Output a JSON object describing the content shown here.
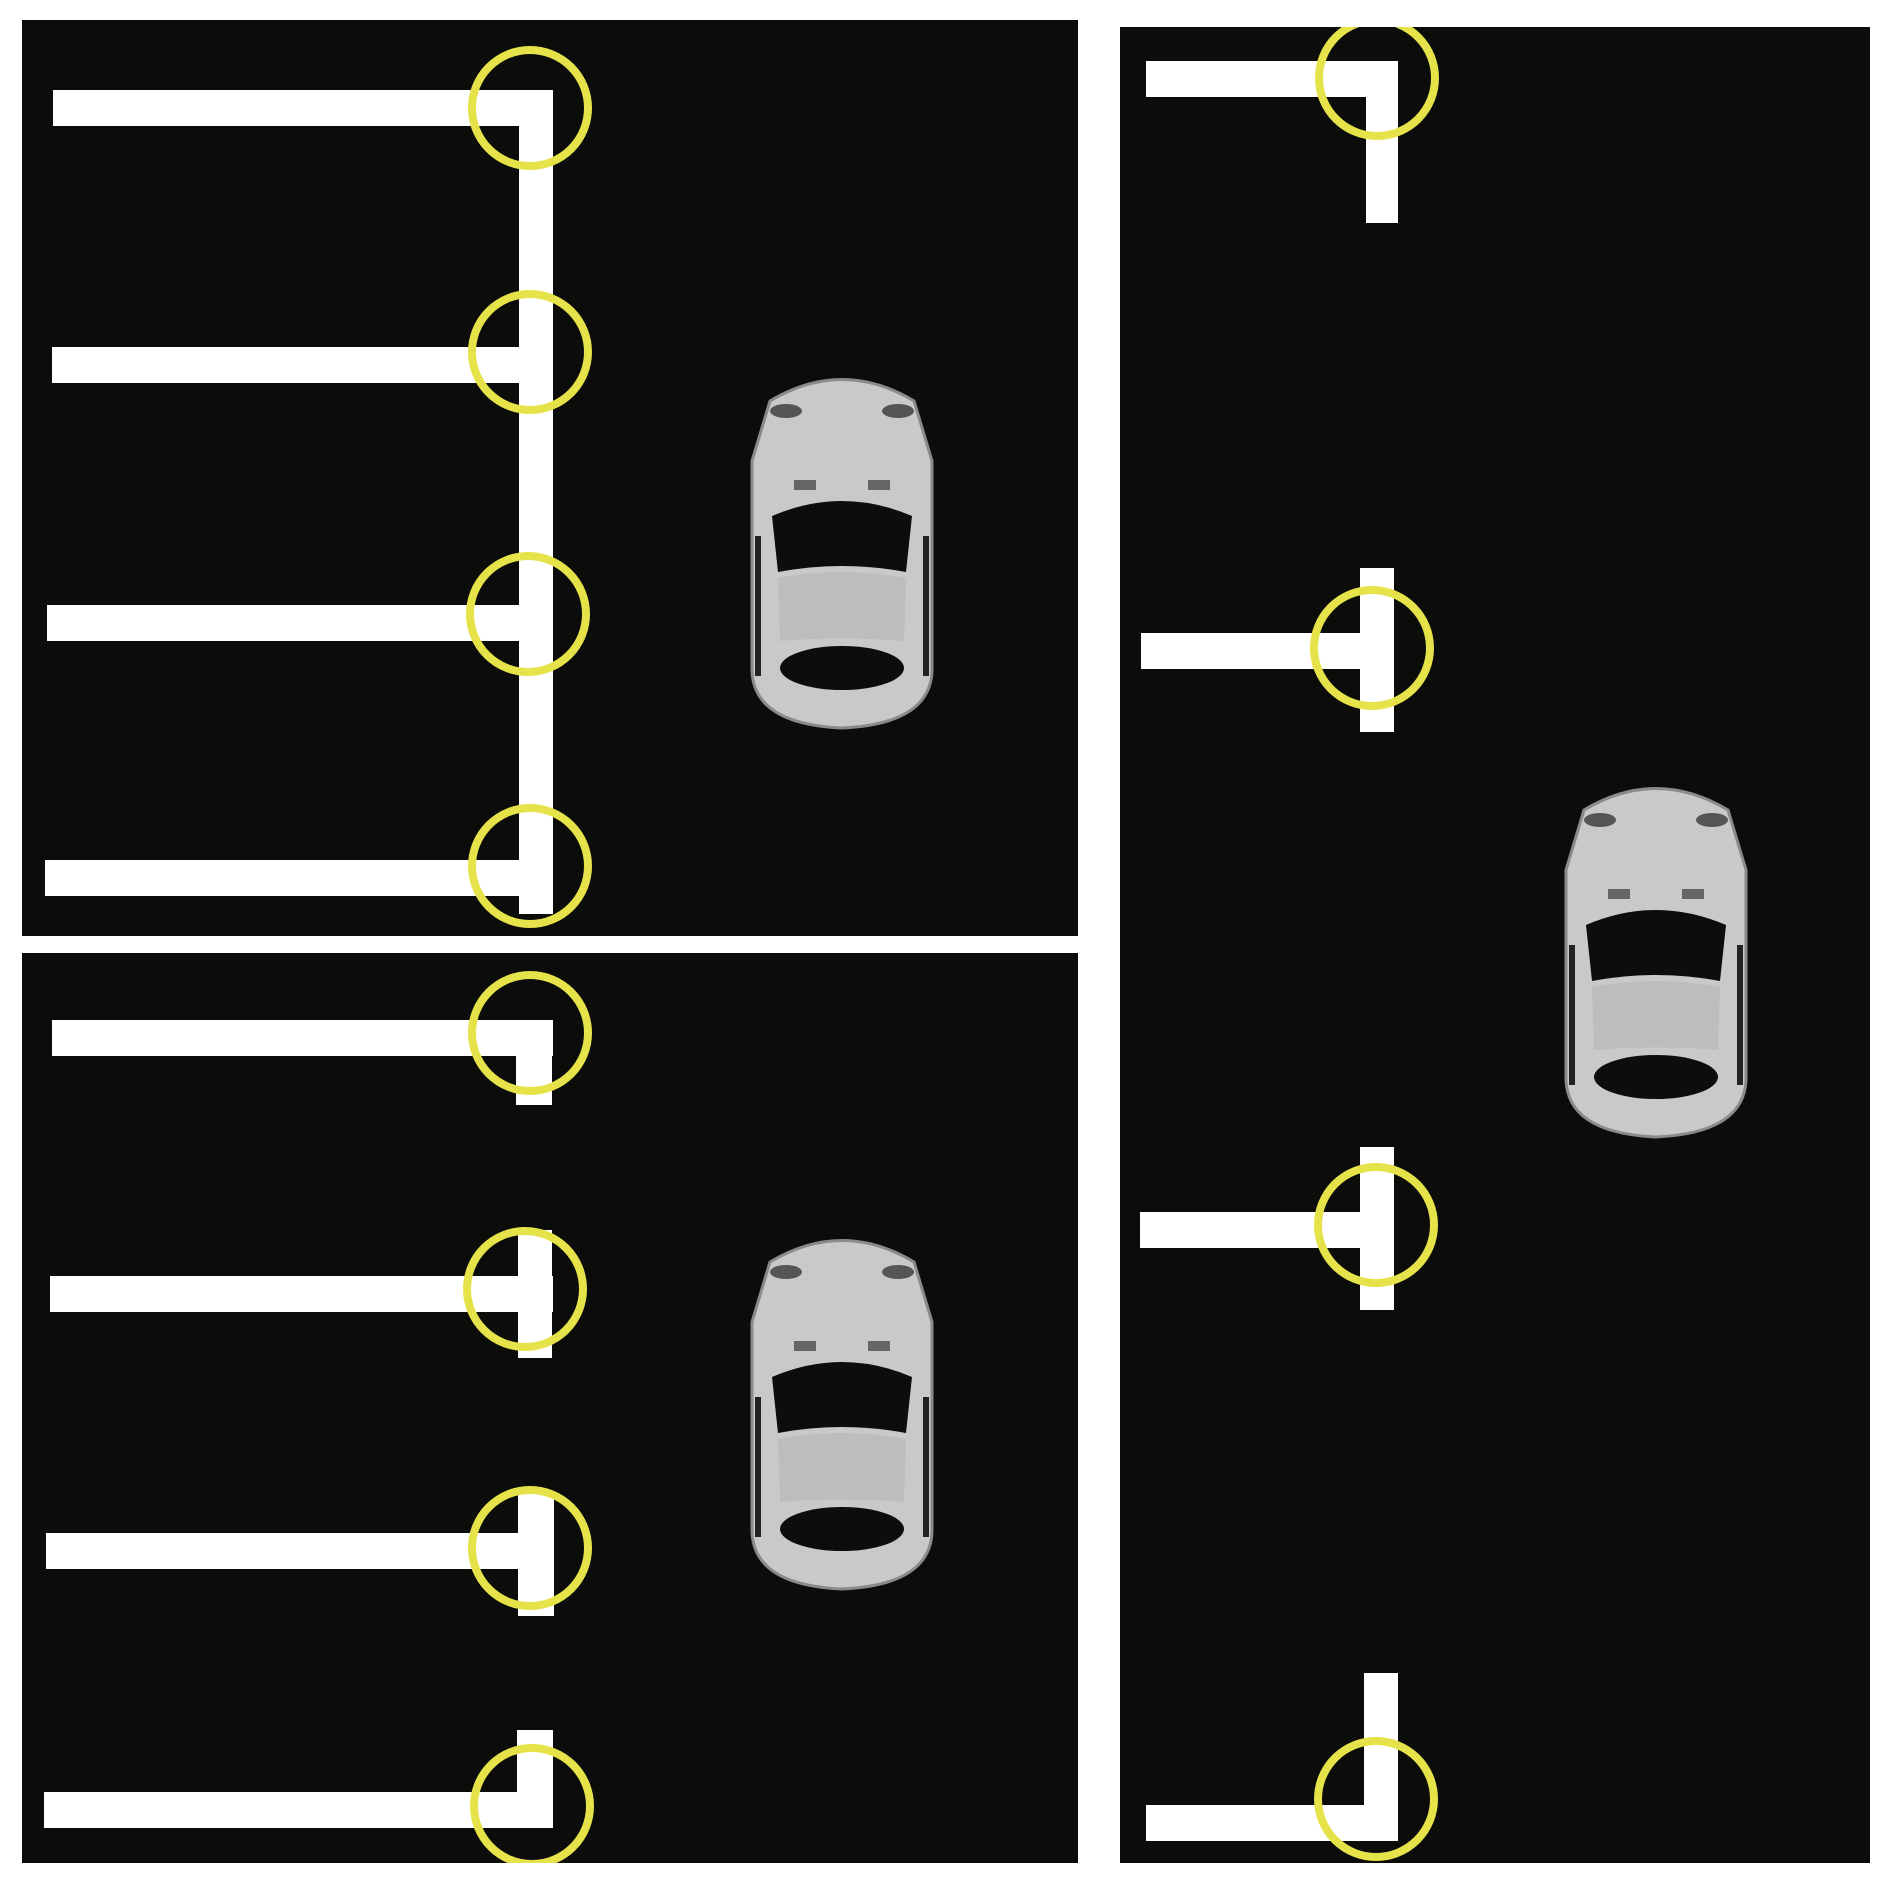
{
  "diagram": {
    "colors": {
      "background": "#0c0c0b",
      "separator": "#ffffff",
      "line": "#ffffff",
      "corner_marker": "#e6e34a",
      "car_body": "#c9c9c9"
    },
    "panels": [
      {
        "name": "continuous-boundary-layout",
        "guide_lines": 4,
        "marker_style": "yellow-circle",
        "vehicle": "silver-car-top-view"
      },
      {
        "name": "segmented-boundary-layout",
        "guide_lines": 4,
        "marker_style": "yellow-circle",
        "vehicle": "silver-car-top-view"
      },
      {
        "name": "wide-spacing-layout",
        "guide_lines": 4,
        "marker_style": "yellow-circle",
        "vehicle": "silver-car-top-view"
      }
    ],
    "icons": [
      "car-icon",
      "corner-marker-icon"
    ]
  }
}
